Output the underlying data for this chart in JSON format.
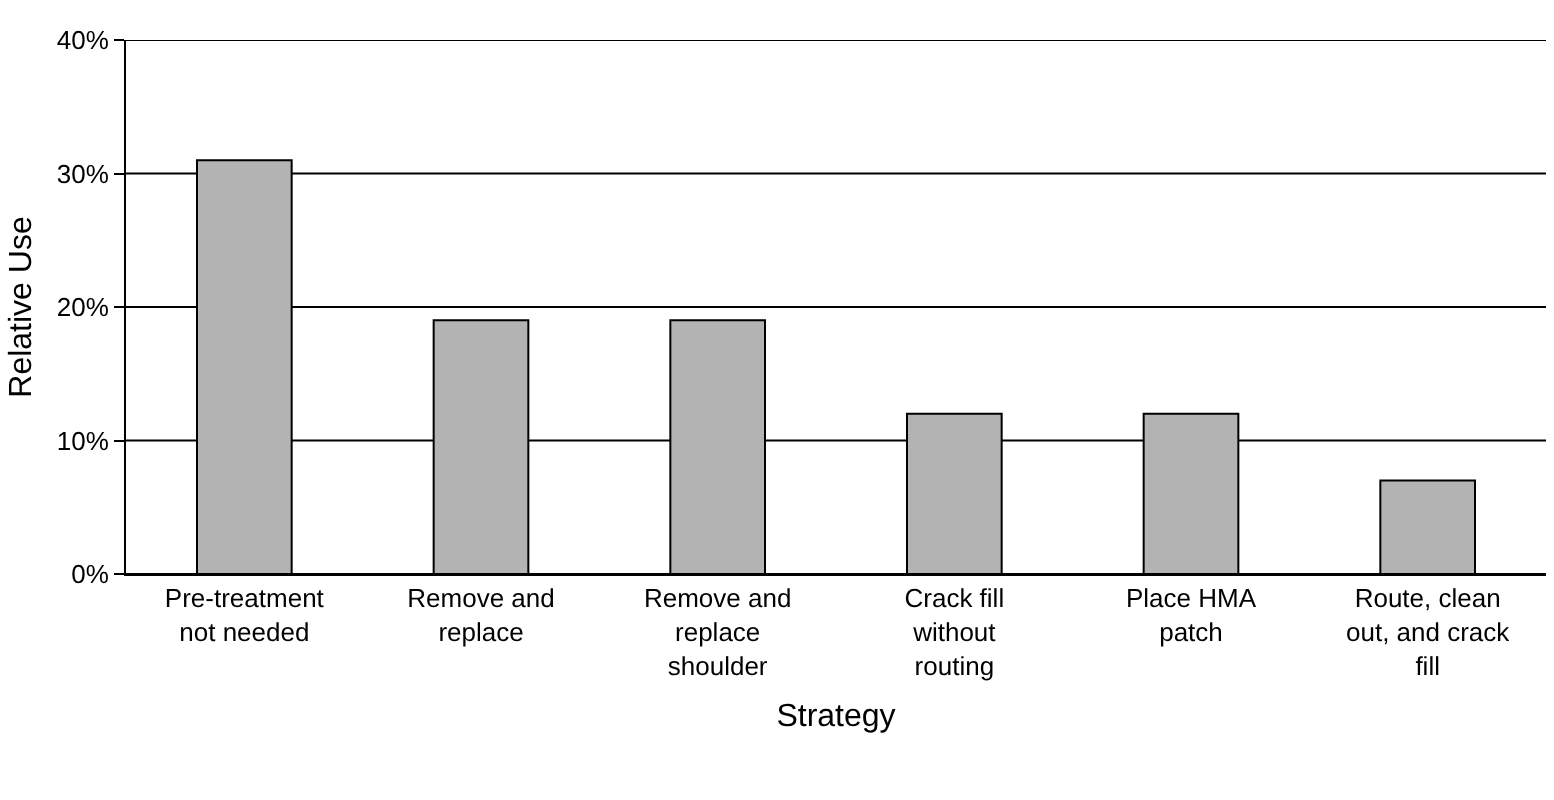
{
  "chart_data": {
    "type": "bar",
    "xlabel": "Strategy",
    "ylabel": "Relative Use",
    "categories": [
      "Pre-treatment not needed",
      "Remove and replace",
      "Remove and replace shoulder",
      "Crack fill without routing",
      "Place HMA patch",
      "Route, clean out, and crack fill"
    ],
    "values": [
      31,
      19,
      19,
      12,
      12,
      7
    ],
    "color": "#b3b3b3",
    "ylim": [
      0,
      40
    ],
    "yticks": [
      {
        "value": 0,
        "label": "0%"
      },
      {
        "value": 10,
        "label": "10%"
      },
      {
        "value": 20,
        "label": "20%"
      },
      {
        "value": 30,
        "label": "30%"
      },
      {
        "value": 40,
        "label": "40%"
      }
    ],
    "grid": "y"
  }
}
